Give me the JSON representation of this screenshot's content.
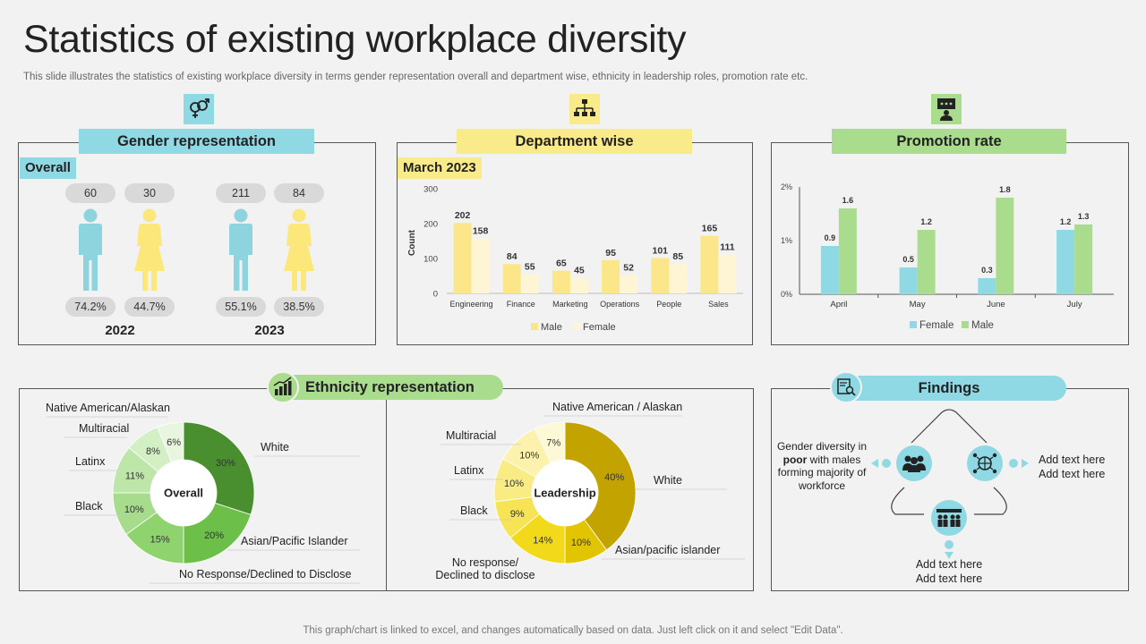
{
  "title": "Statistics of existing workplace diversity",
  "subtitle": "This slide illustrates the statistics of existing workplace diversity in terms gender representation overall and department wise, ethnicity in leadership roles, promotion rate etc.",
  "footer": "This graph/chart is linked to excel,  and changes automatically based on data. Just left click on it and select \"Edit Data\".",
  "colors": {
    "blue": "#8fd9e5",
    "yellow": "#f9ea8a",
    "green": "#a9dc8c",
    "male_fig": "#8dd4df",
    "female_fig": "#fbe77a"
  },
  "gender": {
    "header": "Gender representation",
    "tag": "Overall",
    "years": [
      {
        "year": "2022",
        "male_count": "60",
        "female_count": "30",
        "male_pct": "74.2%",
        "female_pct": "44.7%"
      },
      {
        "year": "2023",
        "male_count": "211",
        "female_count": "84",
        "male_pct": "55.1%",
        "female_pct": "38.5%"
      }
    ]
  },
  "department": {
    "header": "Department wise",
    "tag": "March 2023",
    "chart_data": {
      "type": "bar",
      "categories": [
        "Engineering",
        "Finance",
        "Marketing",
        "Operations",
        "People",
        "Sales"
      ],
      "series": [
        {
          "name": "Male",
          "values": [
            202,
            84,
            65,
            95,
            101,
            165
          ],
          "color": "#fbe78a"
        },
        {
          "name": "Female",
          "values": [
            158,
            55,
            45,
            52,
            85,
            111
          ],
          "color": "#fdf5d4"
        }
      ],
      "ylabel": "Count",
      "ylim": [
        0,
        300
      ],
      "yticks": [
        "0",
        "100",
        "200",
        "300"
      ],
      "legend": "bottom"
    }
  },
  "promotion": {
    "header": "Promotion rate",
    "chart_data": {
      "type": "bar",
      "categories": [
        "April",
        "May",
        "June",
        "July"
      ],
      "series": [
        {
          "name": "Female",
          "values": [
            0.9,
            0.5,
            0.3,
            1.2
          ],
          "color": "#8fd9e5"
        },
        {
          "name": "Male",
          "values": [
            1.6,
            1.2,
            1.8,
            1.3
          ],
          "color": "#a9dc8c"
        }
      ],
      "ylim": [
        0,
        2
      ],
      "yticks": [
        "0%",
        "1%",
        "2%"
      ],
      "legend": "bottom"
    }
  },
  "ethnicity": {
    "header": "Ethnicity representation",
    "overall": {
      "center": "Overall",
      "chart_data": {
        "type": "pie",
        "labels": [
          "White",
          "Asian/Pacific Islander",
          "No Response/Declined to Disclose",
          "Black",
          "Latinx",
          "Multiracial",
          "Native American/Alaskan"
        ],
        "values": [
          30,
          20,
          15,
          10,
          11,
          8,
          6
        ],
        "value_labels": [
          "30%",
          "20%",
          "15%",
          "10%",
          "11%",
          "8%",
          "6%"
        ],
        "colors": [
          "#4a8f2f",
          "#6cc04a",
          "#8fd36f",
          "#a6dc8c",
          "#bde6a8",
          "#d3efc4",
          "#e8f6df"
        ]
      }
    },
    "leadership": {
      "center": "Leadership",
      "chart_data": {
        "type": "pie",
        "labels": [
          "White",
          "Asian/pacific islander",
          "No response/ Declined to disclose",
          "Black",
          "Latinx",
          "Multiracial",
          "Native American / Alaskan"
        ],
        "values": [
          40,
          10,
          14,
          9,
          10,
          10,
          7
        ],
        "value_labels": [
          "40%",
          "10%",
          "14%",
          "9%",
          "10%",
          "10%",
          "7%"
        ],
        "colors": [
          "#c2a300",
          "#e3c400",
          "#f2d91a",
          "#f7e455",
          "#faec85",
          "#fcf2ae",
          "#fdf8d6"
        ]
      }
    }
  },
  "findings": {
    "header": "Findings",
    "left_text_parts": [
      "Gender diversity in ",
      "poor",
      " with males forming majority of workforce"
    ],
    "right_lines": [
      "Add text here",
      "Add text here"
    ],
    "bottom_lines": [
      "Add text here",
      "Add text here"
    ]
  }
}
